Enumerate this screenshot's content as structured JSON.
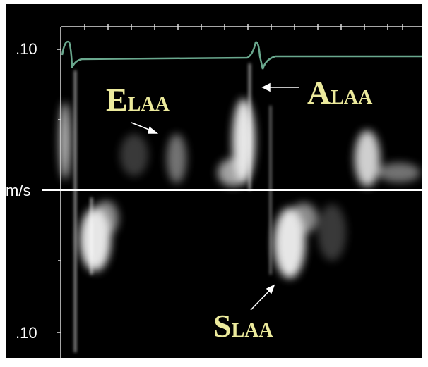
{
  "scale": {
    "top": ".10",
    "unit": "m/s",
    "bottom": ".10"
  },
  "labels": [
    {
      "main": "E",
      "sub": "LAA"
    },
    {
      "main": "A",
      "sub": "LAA"
    },
    {
      "main": "S",
      "sub": "LAA"
    }
  ]
}
